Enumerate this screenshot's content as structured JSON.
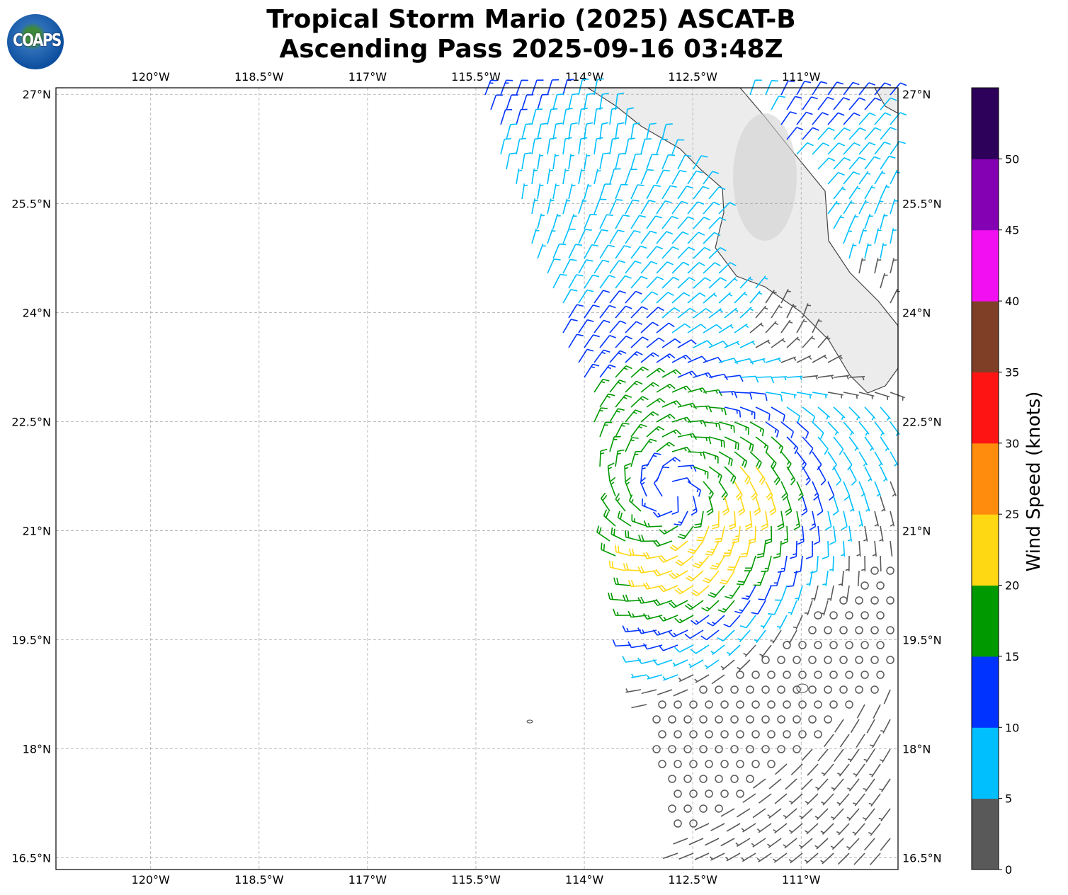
{
  "title_line1": "Tropical Storm Mario (2025) ASCAT-B",
  "title_line2": "Ascending Pass 2025-09-16 03:48Z",
  "logo_text": "COAPS",
  "colorbar_label": "Wind Speed (knots)",
  "chart_data": {
    "type": "map-wind-barbs",
    "lon_ticks": [
      "120°W",
      "118.5°W",
      "117°W",
      "115.5°W",
      "114°W",
      "112.5°W",
      "111°W"
    ],
    "lon_values": [
      -120,
      -118.5,
      -117,
      -115.5,
      -114,
      -112.5,
      -111
    ],
    "lat_ticks": [
      "27°N",
      "25.5°N",
      "24°N",
      "22.5°N",
      "21°N",
      "19.5°N",
      "18°N",
      "16.5°N"
    ],
    "lat_values": [
      27,
      25.5,
      24,
      22.5,
      21,
      19.5,
      18,
      16.5
    ],
    "lon_range": [
      -121.31,
      -109.66
    ],
    "lat_range": [
      16.34,
      27.09
    ],
    "storm_center": {
      "lon": -112.8,
      "lat": 21.5
    },
    "colorbar": {
      "bounds": [
        0,
        5,
        10,
        15,
        20,
        25,
        30,
        35,
        40,
        45,
        50,
        55
      ],
      "colors": [
        "#595959",
        "#00bfff",
        "#0033ff",
        "#009900",
        "#ffd814",
        "#ff8c0d",
        "#ff1414",
        "#7f3f26",
        "#f20ff2",
        "#8400b3",
        "#2d0059"
      ],
      "tick_labels": [
        "0",
        "5",
        "10",
        "15",
        "20",
        "25",
        "30",
        "35",
        "40",
        "45",
        "50"
      ]
    }
  }
}
